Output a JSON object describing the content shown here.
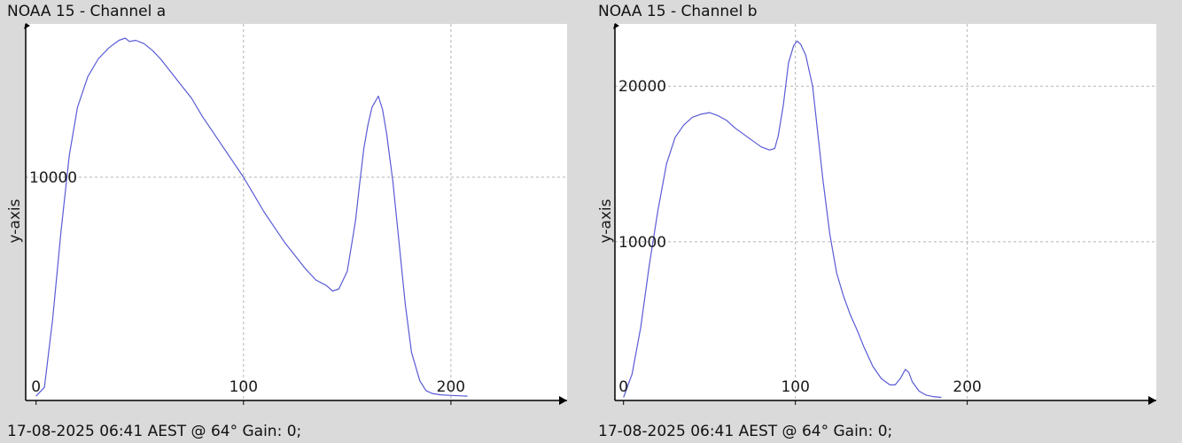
{
  "chart_data": [
    {
      "type": "line",
      "title": "NOAA 15 - Channel a",
      "footer": "17-08-2025 06:41 AEST @ 64° Gain: 0;",
      "ylabel": "y-axis",
      "xlabel": "",
      "xlim": [
        -5,
        256
      ],
      "ylim": [
        -200,
        17000
      ],
      "x_ticks": [
        0,
        100,
        200
      ],
      "y_ticks": [
        10000
      ],
      "grid": true,
      "line_color": "#5a5ad6",
      "series": [
        {
          "x": [
            0,
            4,
            8,
            12,
            16,
            20,
            25,
            30,
            35,
            40,
            43,
            45,
            48,
            52,
            56,
            60,
            65,
            70,
            75,
            80,
            85,
            90,
            95,
            100,
            105,
            110,
            115,
            120,
            125,
            130,
            135,
            140,
            143,
            146,
            150,
            154,
            156,
            158,
            160,
            162,
            165,
            167,
            169,
            172,
            175,
            178,
            181,
            185,
            188,
            191,
            195,
            200,
            205,
            208
          ],
          "y": [
            0,
            400,
            3500,
            7500,
            11000,
            13200,
            14600,
            15400,
            15900,
            16250,
            16350,
            16200,
            16250,
            16100,
            15800,
            15400,
            14800,
            14200,
            13600,
            12800,
            12100,
            11400,
            10700,
            10000,
            9200,
            8400,
            7700,
            7000,
            6400,
            5800,
            5300,
            5050,
            4800,
            4900,
            5700,
            8000,
            9700,
            11300,
            12400,
            13200,
            13700,
            13100,
            12000,
            9800,
            7000,
            4200,
            2000,
            700,
            250,
            120,
            60,
            30,
            10,
            0
          ]
        }
      ]
    },
    {
      "type": "line",
      "title": "NOAA 15 - Channel b",
      "footer": "17-08-2025 06:41 AEST @ 64° Gain: 0;",
      "ylabel": "y-axis",
      "xlabel": "",
      "xlim": [
        -5,
        310
      ],
      "ylim": [
        -200,
        24000
      ],
      "x_ticks": [
        0,
        100,
        200
      ],
      "y_ticks": [
        10000,
        20000
      ],
      "grid": true,
      "line_color": "#5a5ad6",
      "series": [
        {
          "x": [
            0,
            5,
            10,
            15,
            20,
            25,
            30,
            35,
            40,
            45,
            50,
            55,
            60,
            65,
            70,
            75,
            80,
            85,
            88,
            90,
            93,
            96,
            99,
            101,
            103,
            106,
            110,
            113,
            116,
            120,
            124,
            128,
            132,
            136,
            140,
            145,
            150,
            155,
            158,
            161,
            164,
            166,
            168,
            172,
            176,
            180,
            185
          ],
          "y": [
            0,
            1500,
            4500,
            8500,
            12000,
            15000,
            16700,
            17500,
            18000,
            18200,
            18300,
            18100,
            17800,
            17300,
            16900,
            16500,
            16100,
            15900,
            16000,
            16800,
            18800,
            21500,
            22600,
            22900,
            22700,
            22000,
            20000,
            17000,
            14000,
            10500,
            8000,
            6500,
            5300,
            4300,
            3200,
            2000,
            1200,
            800,
            800,
            1200,
            1800,
            1600,
            1000,
            400,
            150,
            50,
            0
          ]
        }
      ]
    }
  ]
}
